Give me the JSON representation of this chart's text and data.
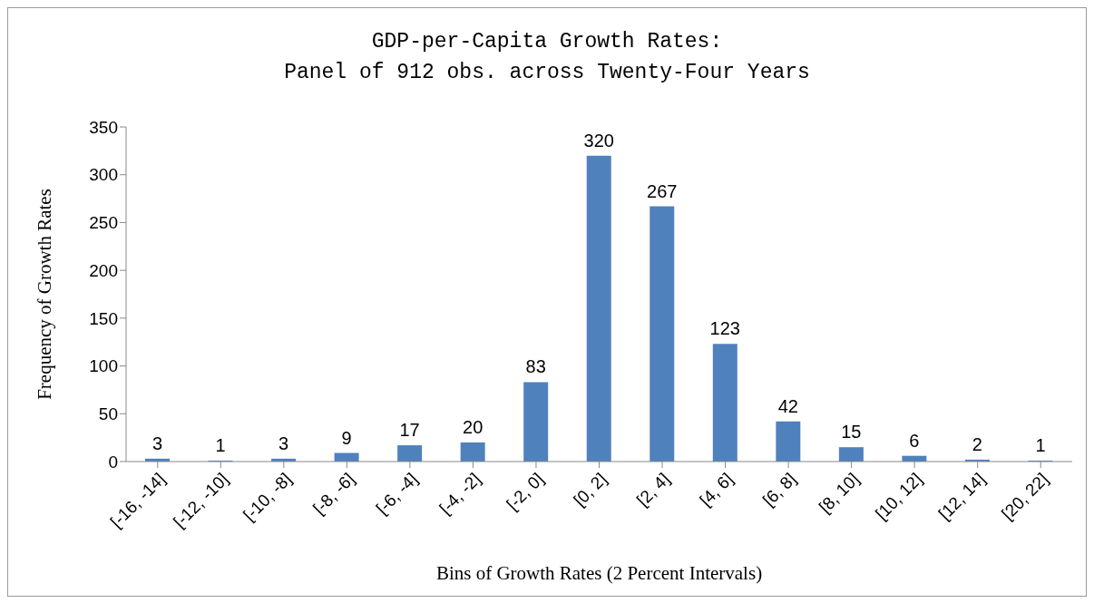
{
  "chart_data": {
    "type": "bar",
    "title": "GDP-per-Capita Growth Rates:\nPanel of 912 obs. across Twenty-Four Years",
    "xlabel": "Bins of Growth Rates (2 Percent Intervals)",
    "ylabel": "Frequency of Growth Rates",
    "categories": [
      "[-16, -14]",
      "[-12, -10]",
      "[-10, -8]",
      "[-8, -6]",
      "[-6, -4]",
      "[-4, -2]",
      "[-2, 0]",
      "[0, 2]",
      "[2, 4]",
      "[4, 6]",
      "[6, 8]",
      "[8, 10]",
      "[10, 12]",
      "[12, 14]",
      "[20, 22]"
    ],
    "values": [
      3,
      1,
      3,
      9,
      17,
      20,
      83,
      320,
      267,
      123,
      42,
      15,
      6,
      2,
      1
    ],
    "color": "#4f81bd",
    "ylim": [
      0,
      350
    ],
    "yticks": [
      0,
      50,
      100,
      150,
      200,
      250,
      300,
      350
    ],
    "grid": false,
    "data_labels": true
  }
}
